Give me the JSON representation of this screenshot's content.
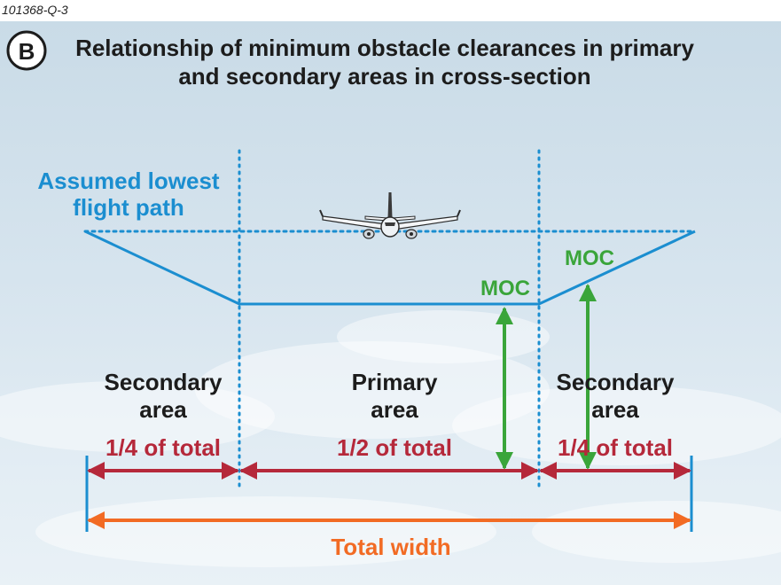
{
  "figure_id": "101368-Q-3",
  "badge": "B",
  "title": {
    "line1": "Relationship of minimum obstacle clearances in primary",
    "line2": "and secondary areas in cross-section"
  },
  "flight_path_label": {
    "line1": "Assumed lowest",
    "line2": "flight path"
  },
  "moc_labels": [
    "MOC",
    "MOC"
  ],
  "areas": [
    {
      "name_line1": "Secondary",
      "name_line2": "area",
      "fraction": "1/4 of total"
    },
    {
      "name_line1": "Primary",
      "name_line2": "area",
      "fraction": "1/2 of total"
    },
    {
      "name_line1": "Secondary",
      "name_line2": "area",
      "fraction": "1/4 of total"
    }
  ],
  "total_label": "Total width",
  "icons": [
    "airplane-icon",
    "cloud-background"
  ],
  "colors": {
    "flight_path": "#1b8ed0",
    "moc": "#3aa53a",
    "fraction_arrows": "#b5283a",
    "total_arrow": "#f26b24",
    "text": "#1c1c1c"
  }
}
